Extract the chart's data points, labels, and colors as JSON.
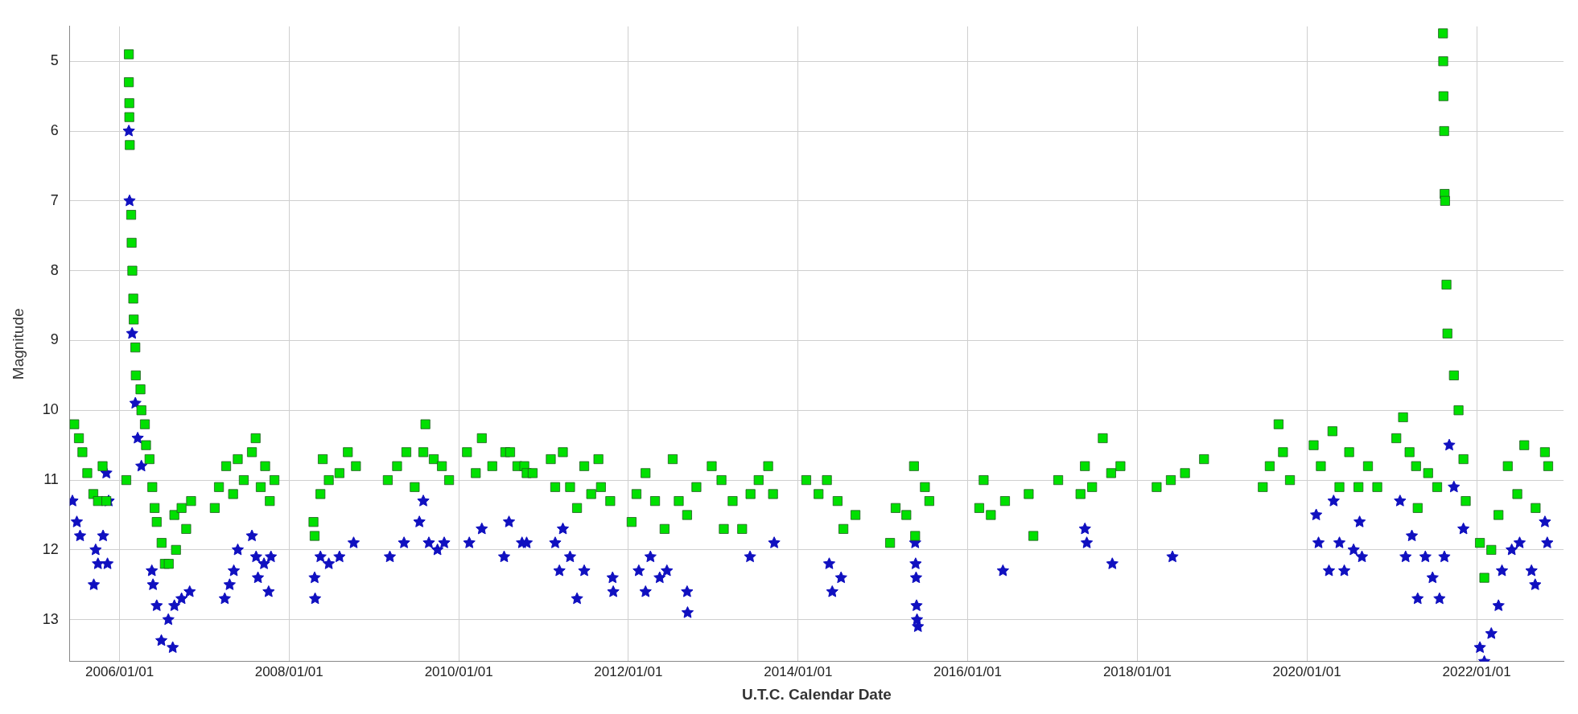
{
  "chart_data": {
    "type": "scatter",
    "xlabel": "U.T.C. Calendar Date",
    "ylabel": "Magnitude",
    "grid": true,
    "legend": false,
    "xlim": [
      "2005-06-01",
      "2023-01-10"
    ],
    "xticks": [
      {
        "value": "2006-01-01",
        "label": "2006/01/01"
      },
      {
        "value": "2008-01-01",
        "label": "2008/01/01"
      },
      {
        "value": "2010-01-01",
        "label": "2010/01/01"
      },
      {
        "value": "2012-01-01",
        "label": "2012/01/01"
      },
      {
        "value": "2014-01-01",
        "label": "2014/01/01"
      },
      {
        "value": "2016-01-01",
        "label": "2016/01/01"
      },
      {
        "value": "2018-01-01",
        "label": "2018/01/01"
      },
      {
        "value": "2020-01-01",
        "label": "2020/01/01"
      },
      {
        "value": "2022-01-01",
        "label": "2022/01/01"
      }
    ],
    "ylim": [
      13.6,
      4.5
    ],
    "yticks": [
      5,
      6,
      7,
      8,
      9,
      10,
      11,
      12,
      13
    ],
    "series": [
      {
        "color": "#00e000",
        "marker": "square",
        "x": [
          "2005-06-20",
          "2005-07-10",
          "2005-07-25",
          "2005-08-15",
          "2005-09-10",
          "2005-09-30",
          "2005-10-20",
          "2005-11-05",
          "2006-01-30",
          "2006-02-10",
          "2006-02-10",
          "2006-02-12",
          "2006-02-12",
          "2006-02-14",
          "2006-02-20",
          "2006-02-22",
          "2006-02-25",
          "2006-03-01",
          "2006-03-03",
          "2006-03-10",
          "2006-03-12",
          "2006-04-01",
          "2006-04-05",
          "2006-04-20",
          "2006-04-25",
          "2006-05-10",
          "2006-05-22",
          "2006-06-01",
          "2006-06-10",
          "2006-07-01",
          "2006-07-15",
          "2006-08-01",
          "2006-08-25",
          "2006-09-01",
          "2006-09-25",
          "2006-10-15",
          "2006-11-05",
          "2007-02-15",
          "2007-03-05",
          "2007-04-05",
          "2007-05-05",
          "2007-05-25",
          "2007-06-20",
          "2007-07-25",
          "2007-08-10",
          "2007-09-01",
          "2007-09-20",
          "2007-10-10",
          "2007-10-30",
          "2008-04-15",
          "2008-04-20",
          "2008-05-15",
          "2008-05-25",
          "2008-06-20",
          "2008-08-05",
          "2008-09-10",
          "2008-10-15",
          "2009-03-01",
          "2009-04-10",
          "2009-05-20",
          "2009-06-25",
          "2009-08-01",
          "2009-08-10",
          "2009-09-15",
          "2009-10-20",
          "2009-11-20",
          "2010-02-05",
          "2010-03-15",
          "2010-04-10",
          "2010-05-25",
          "2010-07-20",
          "2010-08-10",
          "2010-09-10",
          "2010-10-10",
          "2010-10-20",
          "2010-11-15",
          "2011-02-01",
          "2011-02-20",
          "2011-03-25",
          "2011-04-25",
          "2011-05-25",
          "2011-06-25",
          "2011-07-25",
          "2011-08-25",
          "2011-09-05",
          "2011-10-15",
          "2012-01-15",
          "2012-02-05",
          "2012-03-15",
          "2012-04-25",
          "2012-06-05",
          "2012-07-10",
          "2012-08-05",
          "2012-09-10",
          "2012-10-20",
          "2012-12-25",
          "2013-02-05",
          "2013-02-15",
          "2013-03-25",
          "2013-05-05",
          "2013-06-10",
          "2013-07-15",
          "2013-08-25",
          "2013-09-15",
          "2014-02-05",
          "2014-03-30",
          "2014-05-05",
          "2014-06-20",
          "2014-07-15",
          "2014-09-05",
          "2015-02-01",
          "2015-02-25",
          "2015-04-12",
          "2015-05-15",
          "2015-05-20",
          "2015-07-01",
          "2015-07-20",
          "2016-02-20",
          "2016-03-10",
          "2016-04-10",
          "2016-06-10",
          "2016-09-20",
          "2016-10-10",
          "2017-01-25",
          "2017-05-01",
          "2017-05-20",
          "2017-06-20",
          "2017-08-05",
          "2017-09-10",
          "2017-10-20",
          "2018-03-25",
          "2018-05-25",
          "2018-07-25",
          "2018-10-15",
          "2019-06-25",
          "2019-07-25",
          "2019-09-01",
          "2019-09-20",
          "2019-10-20",
          "2020-01-30",
          "2020-03-01",
          "2020-04-20",
          "2020-05-20",
          "2020-07-01",
          "2020-08-10",
          "2020-09-20",
          "2020-10-30",
          "2021-01-20",
          "2021-02-18",
          "2021-03-18",
          "2021-04-15",
          "2021-04-22",
          "2021-06-06",
          "2021-07-15",
          "2021-08-09",
          "2021-08-10",
          "2021-08-11",
          "2021-08-14",
          "2021-08-16",
          "2021-08-18",
          "2021-08-24",
          "2021-08-28",
          "2021-09-25",
          "2021-10-15",
          "2021-11-05",
          "2021-11-15",
          "2022-01-15",
          "2022-02-03",
          "2022-03-05",
          "2022-04-05",
          "2022-05-15",
          "2022-06-25",
          "2022-07-25",
          "2022-09-12",
          "2022-10-22",
          "2022-11-05"
        ],
        "values": [
          10.2,
          10.4,
          10.6,
          10.9,
          11.2,
          11.3,
          10.8,
          11.3,
          11.0,
          4.9,
          5.3,
          5.6,
          5.8,
          6.2,
          7.2,
          7.6,
          8.0,
          8.4,
          8.7,
          9.1,
          9.5,
          9.7,
          10.0,
          10.2,
          10.5,
          10.7,
          11.1,
          11.4,
          11.6,
          11.9,
          12.2,
          12.2,
          11.5,
          12.0,
          11.4,
          11.7,
          11.3,
          11.4,
          11.1,
          10.8,
          11.2,
          10.7,
          11.0,
          10.6,
          10.4,
          11.1,
          10.8,
          11.3,
          11.0,
          11.6,
          11.8,
          11.2,
          10.7,
          11.0,
          10.9,
          10.6,
          10.8,
          11.0,
          10.8,
          10.6,
          11.1,
          10.6,
          10.2,
          10.7,
          10.8,
          11.0,
          10.6,
          10.9,
          10.4,
          10.8,
          10.6,
          10.6,
          10.8,
          10.8,
          10.9,
          10.9,
          10.7,
          11.1,
          10.6,
          11.1,
          11.4,
          10.8,
          11.2,
          10.7,
          11.1,
          11.3,
          11.6,
          11.2,
          10.9,
          11.3,
          11.7,
          10.7,
          11.3,
          11.5,
          11.1,
          10.8,
          11.0,
          11.7,
          11.3,
          11.7,
          11.2,
          11.0,
          10.8,
          11.2,
          11.0,
          11.2,
          11.0,
          11.3,
          11.7,
          11.5,
          11.9,
          11.4,
          11.5,
          10.8,
          11.8,
          11.1,
          11.3,
          11.4,
          11.0,
          11.5,
          11.3,
          11.2,
          11.8,
          11.0,
          11.2,
          10.8,
          11.1,
          10.4,
          10.9,
          10.8,
          11.1,
          11.0,
          10.9,
          10.7,
          11.1,
          10.8,
          10.2,
          10.6,
          11.0,
          10.5,
          10.8,
          10.3,
          11.1,
          10.6,
          11.1,
          10.8,
          11.1,
          10.4,
          10.1,
          10.6,
          10.8,
          11.4,
          10.9,
          11.1,
          4.6,
          5.0,
          5.5,
          6.0,
          6.9,
          7.0,
          8.2,
          8.9,
          9.5,
          10.0,
          10.7,
          11.3,
          11.9,
          12.4,
          12.0,
          11.5,
          10.8,
          11.2,
          10.5,
          11.4,
          10.6,
          10.8
        ]
      },
      {
        "color": "#1010c0",
        "marker": "star",
        "x": [
          "2005-06-12",
          "2005-07-01",
          "2005-07-15",
          "2005-09-12",
          "2005-09-20",
          "2005-09-30",
          "2005-10-22",
          "2005-11-05",
          "2005-11-10",
          "2005-11-15",
          "2006-02-10",
          "2006-02-13",
          "2006-02-24",
          "2006-03-10",
          "2006-03-20",
          "2006-04-05",
          "2006-05-20",
          "2006-05-25",
          "2006-06-10",
          "2006-06-30",
          "2006-07-30",
          "2006-08-18",
          "2006-08-25",
          "2006-09-25",
          "2006-10-30",
          "2007-03-30",
          "2007-04-20",
          "2007-05-08",
          "2007-05-25",
          "2007-07-25",
          "2007-08-12",
          "2007-08-20",
          "2007-09-15",
          "2007-10-05",
          "2007-10-15",
          "2008-04-20",
          "2008-04-22",
          "2008-05-15",
          "2008-06-20",
          "2008-08-05",
          "2008-10-05",
          "2009-03-10",
          "2009-05-10",
          "2009-07-15",
          "2009-08-01",
          "2009-08-25",
          "2009-10-01",
          "2009-10-30",
          "2010-02-15",
          "2010-04-10",
          "2010-07-15",
          "2010-08-05",
          "2010-09-30",
          "2010-10-20",
          "2011-02-20",
          "2011-03-10",
          "2011-03-25",
          "2011-04-25",
          "2011-05-25",
          "2011-06-25",
          "2011-10-25",
          "2011-10-28",
          "2012-02-15",
          "2012-03-15",
          "2012-04-05",
          "2012-05-15",
          "2012-06-15",
          "2012-09-10",
          "2012-09-12",
          "2013-06-08",
          "2013-09-20",
          "2014-05-15",
          "2014-05-28",
          "2014-07-05",
          "2015-05-20",
          "2015-05-22",
          "2015-05-24",
          "2015-05-26",
          "2015-05-28",
          "2015-06-01",
          "2016-06-01",
          "2017-05-20",
          "2017-05-28",
          "2017-09-15",
          "2018-06-01",
          "2020-02-10",
          "2020-02-20",
          "2020-04-05",
          "2020-04-25",
          "2020-05-20",
          "2020-06-10",
          "2020-07-20",
          "2020-08-15",
          "2020-08-25",
          "2021-02-05",
          "2021-03-01",
          "2021-03-28",
          "2021-04-22",
          "2021-05-25",
          "2021-06-25",
          "2021-07-25",
          "2021-08-15",
          "2021-09-05",
          "2021-09-25",
          "2021-11-05",
          "2022-01-15",
          "2022-02-03",
          "2022-03-05",
          "2022-04-05",
          "2022-04-20",
          "2022-06-01",
          "2022-07-05",
          "2022-08-25",
          "2022-09-10",
          "2022-10-22",
          "2022-11-01"
        ],
        "values": [
          11.3,
          11.6,
          11.8,
          12.5,
          12.0,
          12.2,
          11.8,
          10.9,
          12.2,
          11.3,
          6.0,
          7.0,
          8.9,
          9.9,
          10.4,
          10.8,
          12.3,
          12.5,
          12.8,
          13.3,
          13.0,
          13.4,
          12.8,
          12.7,
          12.6,
          12.7,
          12.5,
          12.3,
          12.0,
          11.8,
          12.1,
          12.4,
          12.2,
          12.6,
          12.1,
          12.4,
          12.7,
          12.1,
          12.2,
          12.1,
          11.9,
          12.1,
          11.9,
          11.6,
          11.3,
          11.9,
          12.0,
          11.9,
          11.9,
          11.7,
          12.1,
          11.6,
          11.9,
          11.9,
          11.9,
          12.3,
          11.7,
          12.1,
          12.7,
          12.3,
          12.4,
          12.6,
          12.3,
          12.6,
          12.1,
          12.4,
          12.3,
          12.6,
          12.9,
          12.1,
          11.9,
          12.2,
          12.6,
          12.4,
          11.9,
          12.2,
          12.4,
          12.8,
          13.0,
          13.1,
          12.3,
          11.7,
          11.9,
          12.2,
          12.1,
          11.5,
          11.9,
          12.3,
          11.3,
          11.9,
          12.3,
          12.0,
          11.6,
          12.1,
          11.3,
          12.1,
          11.8,
          12.7,
          12.1,
          12.4,
          12.7,
          12.1,
          10.5,
          11.1,
          11.7,
          13.4,
          13.6,
          13.2,
          12.8,
          12.3,
          12.0,
          11.9,
          12.3,
          12.5,
          11.6,
          11.9
        ]
      }
    ]
  }
}
